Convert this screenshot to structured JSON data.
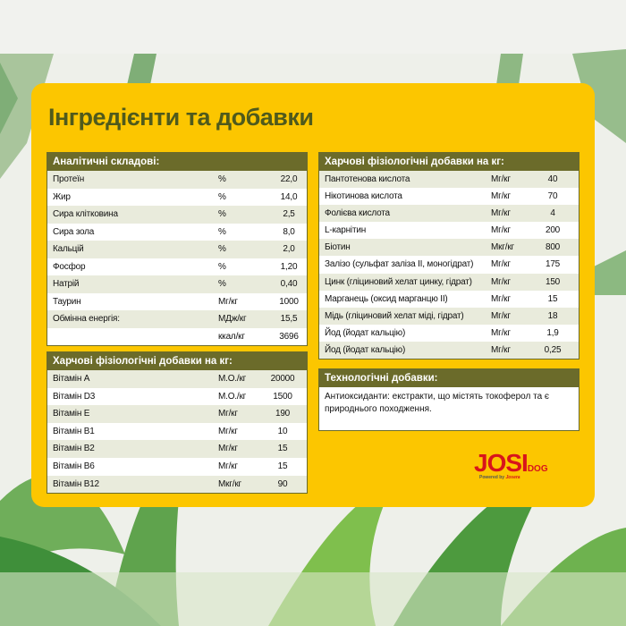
{
  "title": "Інгредієнти та добавки",
  "analytical": {
    "header": "Аналітичні складові:",
    "rows": [
      [
        "Протеїн",
        "%",
        "22,0"
      ],
      [
        "Жир",
        "%",
        "14,0"
      ],
      [
        "Сира клітковина",
        "%",
        "2,5"
      ],
      [
        "Сира зола",
        "%",
        "8,0"
      ],
      [
        "Кальцій",
        "%",
        "2,0"
      ],
      [
        "Фосфор",
        "%",
        "1,20"
      ],
      [
        "Натрій",
        "%",
        "0,40"
      ],
      [
        "Таурин",
        "Мг/кг",
        "1000"
      ],
      [
        "Обмінна енергія:",
        "МДж/кг",
        "15,5"
      ],
      [
        null,
        "ккал/кг",
        "3696"
      ]
    ]
  },
  "vitamins": {
    "header": "Харчові фізіологічні добавки на кг:",
    "rows": [
      [
        "Вітамін A",
        "М.О./кг",
        "20000"
      ],
      [
        "Вітамін D3",
        "М.О./кг",
        "1500"
      ],
      [
        "Вітамін E",
        "Мг/кг",
        "190"
      ],
      [
        "Вітамін B1",
        "Мг/кг",
        "10"
      ],
      [
        "Вітамін B2",
        "Мг/кг",
        "15"
      ],
      [
        "Вітамін B6",
        "Мг/кг",
        "15"
      ],
      [
        "Вітамін B12",
        "Мкг/кг",
        "90"
      ]
    ]
  },
  "additives": {
    "header": "Харчові фізіологічні добавки на кг:",
    "rows": [
      [
        "Пантотенова кислота",
        "Мг/кг",
        "40"
      ],
      [
        "Нікотинова кислота",
        "Мг/кг",
        "70"
      ],
      [
        "Фолієва кислота",
        "Мг/кг",
        "4"
      ],
      [
        "L-карнітин",
        "Мг/кг",
        "200"
      ],
      [
        "Біотин",
        "Мкг/кг",
        "800"
      ],
      [
        "Залізо (сульфат заліза II, моногідрат)",
        "Мг/кг",
        "175"
      ],
      [
        "Цинк (гліциновий хелат цинку, гідрат)",
        "Мг/кг",
        "150"
      ],
      [
        "Марганець (оксид марганцю II)",
        "Мг/кг",
        "15"
      ],
      [
        "Мідь (гліциновий хелат міді, гідрат)",
        "Мг/кг",
        "18"
      ],
      [
        "Йод (йодат кальцію)",
        "Мг/кг",
        "1,9"
      ],
      [
        "Йод (йодат кальцію)",
        "Мг/кг",
        "0,25"
      ]
    ]
  },
  "technological": {
    "header": "Технологічні добавки:",
    "text": "Антиоксиданти: екстракти, що містять токоферол та є природнього походження."
  },
  "logo": {
    "brand": "JOSI",
    "sub": "DOG",
    "powered": "Powered by",
    "maker": "Josera"
  }
}
